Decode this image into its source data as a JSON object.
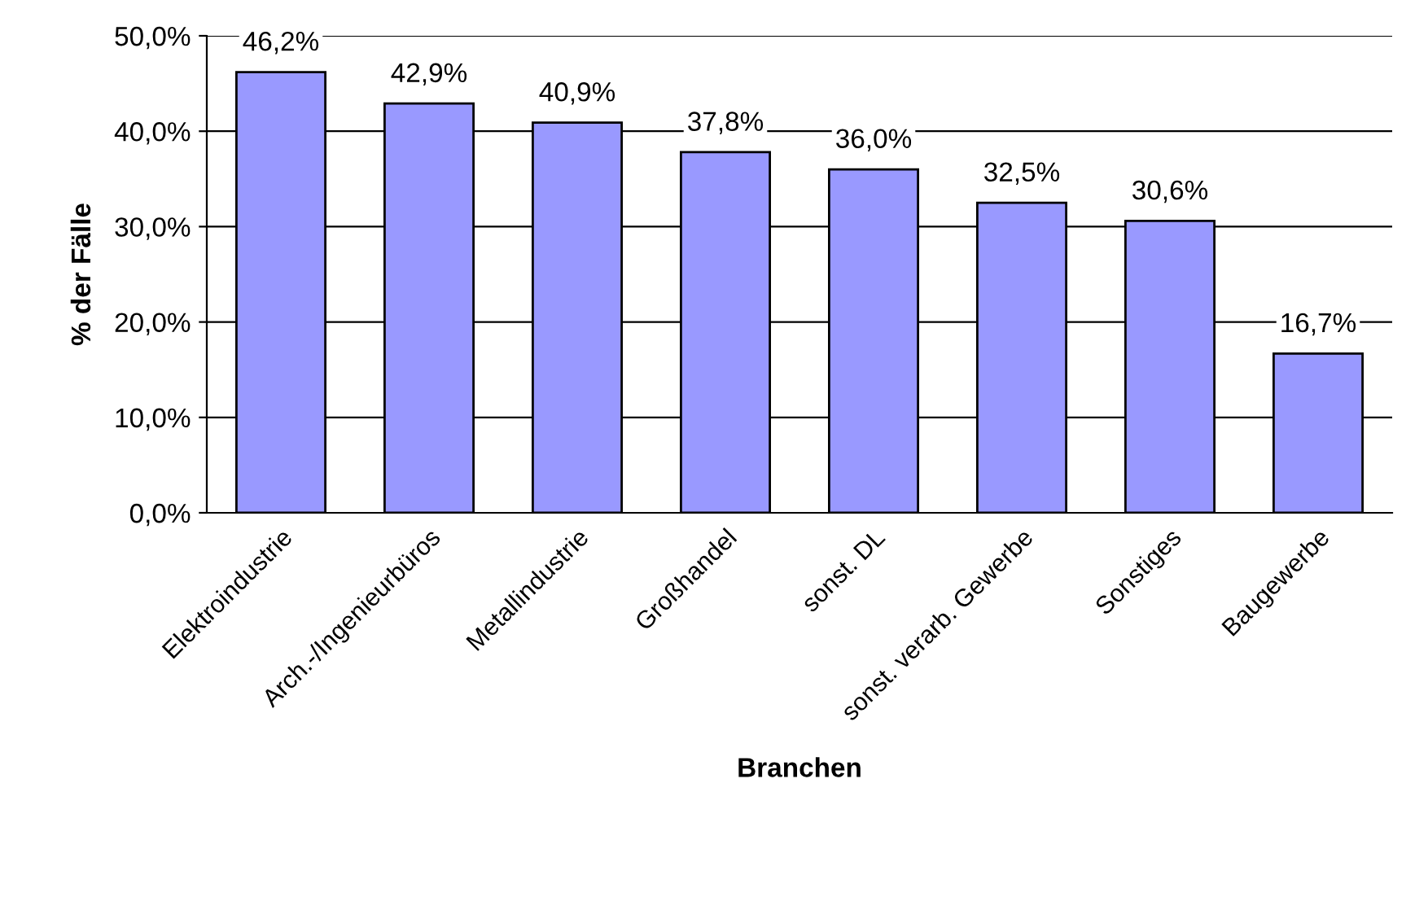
{
  "chart_data": {
    "type": "bar",
    "xlabel": "Branchen",
    "ylabel": "% der Fälle",
    "categories": [
      "Elektroindustrie",
      "Arch.-/Ingenieurbüros",
      "Metallindustrie",
      "Großhandel",
      "sonst. DL",
      "sonst. verarb. Gewerbe",
      "Sonstiges",
      "Baugewerbe"
    ],
    "values": [
      46.2,
      42.9,
      40.9,
      37.8,
      36.0,
      32.5,
      30.6,
      16.7
    ],
    "value_labels": [
      "46,2%",
      "42,9%",
      "40,9%",
      "37,8%",
      "36,0%",
      "32,5%",
      "30,6%",
      "16,7%"
    ],
    "color": "#9999ff",
    "ylim": [
      0,
      50
    ],
    "yticks": [
      {
        "value": 0,
        "label": "0,0%"
      },
      {
        "value": 10,
        "label": "10,0%"
      },
      {
        "value": 20,
        "label": "20,0%"
      },
      {
        "value": 30,
        "label": "30,0%"
      },
      {
        "value": 40,
        "label": "40,0%"
      },
      {
        "value": 50,
        "label": "50,0%"
      }
    ],
    "grid": "y",
    "legend": false
  }
}
